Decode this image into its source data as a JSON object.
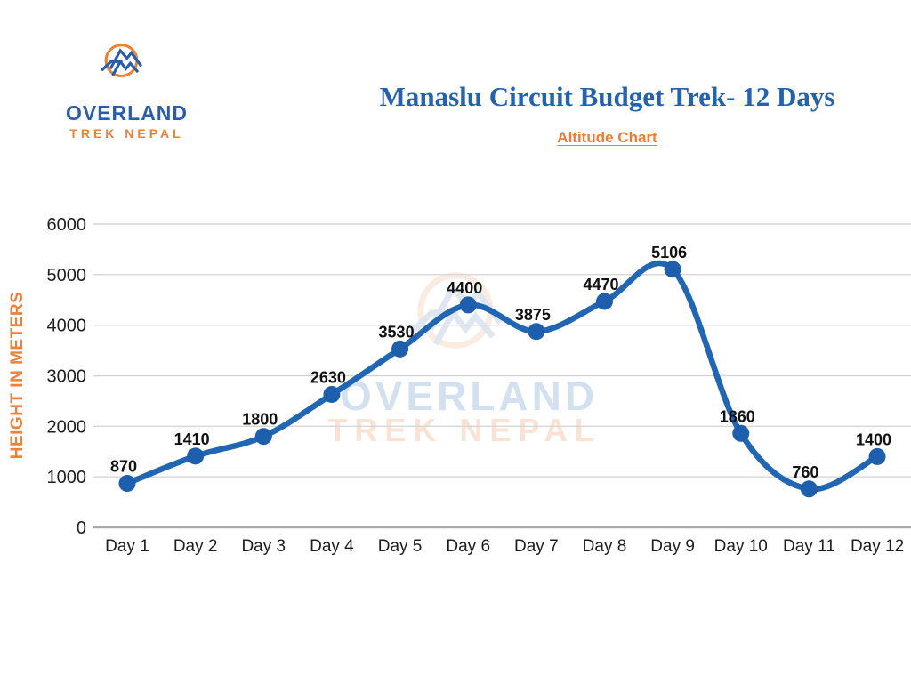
{
  "logo": {
    "line1": "OVERLAND",
    "line2": "TREK NEPAL"
  },
  "header": {
    "title": "Manaslu Circuit Budget Trek- 12 Days",
    "subtitle": "Altitude Chart"
  },
  "watermark": {
    "line1": "OVERLAND",
    "line2": "TREK NEPAL"
  },
  "chart_data": {
    "type": "line",
    "title": "Altitude Chart",
    "categories": [
      "Day 1",
      "Day 2",
      "Day 3",
      "Day 4",
      "Day 5",
      "Day 6",
      "Day 7",
      "Day 8",
      "Day 9",
      "Day 10",
      "Day 11",
      "Day 12"
    ],
    "values": [
      870,
      1410,
      1800,
      2630,
      3530,
      4400,
      3875,
      4470,
      5106,
      1860,
      760,
      1400
    ],
    "xlabel": "",
    "ylabel": "HEIGHT IN METERS",
    "ylim": [
      0,
      6000
    ],
    "yticks": [
      0,
      1000,
      2000,
      3000,
      4000,
      5000,
      6000
    ],
    "grid": true,
    "legend": false,
    "smooth": true,
    "data_labels": true
  },
  "colors": {
    "title_blue": "#2463ac",
    "accent_orange": "#ed7d31",
    "axis_title_orange": "#e8823c",
    "line_blue": "#2166b3",
    "marker_blue": "#1e5fad",
    "logo_blue": "#2a5caa",
    "logo_orange": "#e8833c",
    "grid_gray": "#d6d6d6",
    "axis_gray": "#ababab",
    "tick_text": "#1d1d1d",
    "data_label_text": "#111111"
  }
}
